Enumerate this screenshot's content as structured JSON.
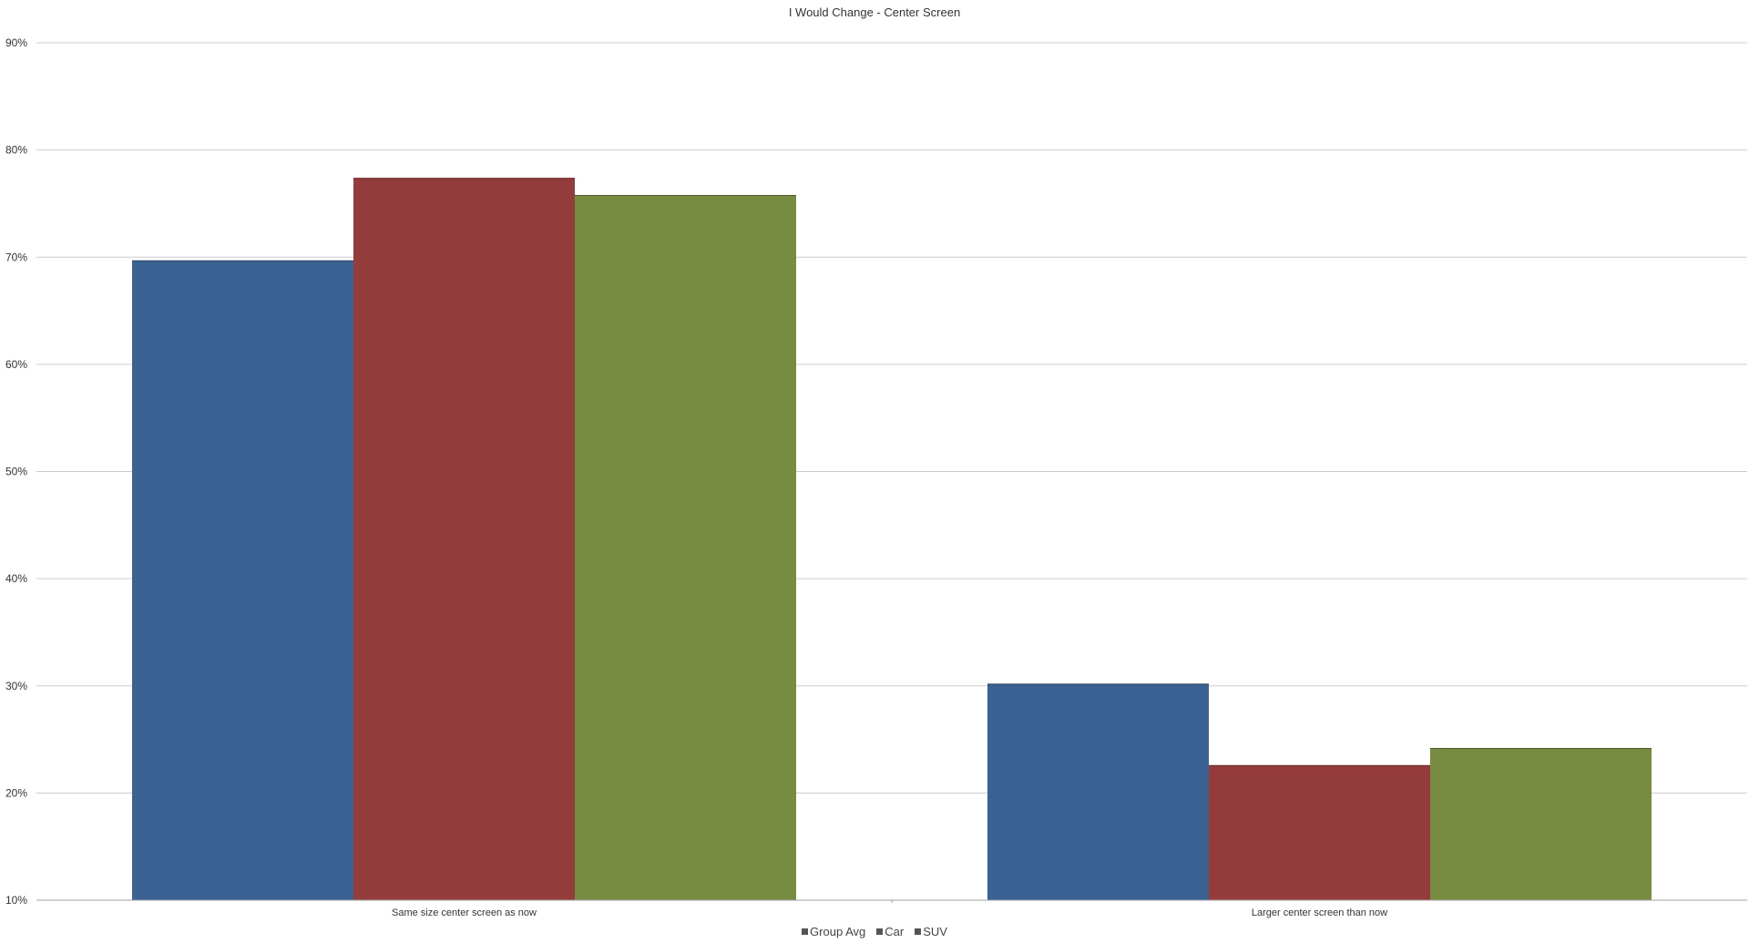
{
  "chart_data": {
    "type": "bar",
    "title": "I Would Change - Center Screen",
    "xlabel": "",
    "ylabel": "",
    "categories": [
      "Same size center screen as now",
      "Larger center screen than now"
    ],
    "series": [
      {
        "name": "Group Avg",
        "color": "#3a6292",
        "values": [
          69.7,
          30.2
        ]
      },
      {
        "name": "Car",
        "color": "#943b3b",
        "values": [
          77.4,
          22.6
        ]
      },
      {
        "name": "SUV",
        "color": "#778c40",
        "values": [
          75.8,
          24.2
        ]
      }
    ],
    "ylim": [
      10,
      90
    ],
    "yticks": [
      "10%",
      "20%",
      "30%",
      "40%",
      "50%",
      "60%",
      "70%",
      "80%",
      "90%"
    ],
    "grid": true,
    "legend": "bottom-center"
  }
}
